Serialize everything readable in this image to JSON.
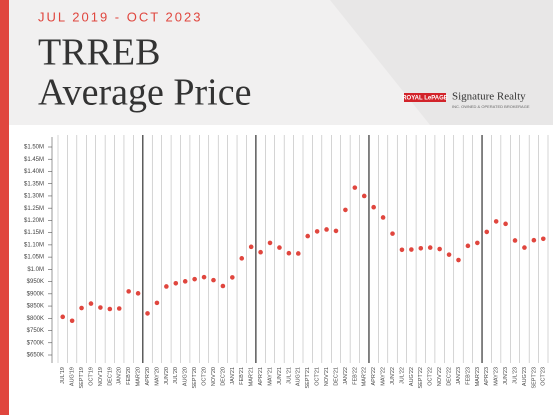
{
  "chart_data": {
    "type": "scatter",
    "subtitle": "JUL 2019 - OCT 2023",
    "title_lines": [
      "TRREB",
      "Average Price"
    ],
    "color": "#e0463e",
    "grid": true,
    "categories": [
      "JUL'19",
      "AUG'19",
      "SEPT'19",
      "OCT'19",
      "NOV'19",
      "DEC'19",
      "JAN'20",
      "FEB'20",
      "MAR'20",
      "APR'20",
      "MAY'20",
      "JUN'20",
      "JUL'20",
      "AUG'20",
      "SEPT'20",
      "OCT'20",
      "NOV'20",
      "DEC'20",
      "JAN'21",
      "FEB'21",
      "MAR'21",
      "APR'21",
      "MAY'21",
      "JUN'21",
      "JUL'21",
      "AUG'21",
      "SEPT'21",
      "OCT'21",
      "NOV'21",
      "DEC'21",
      "JAN'22",
      "FEB'22",
      "MAR'22",
      "APR'22",
      "MAY'22",
      "JUN'22",
      "JUL'22",
      "AUG'22",
      "SEPT'22",
      "OCT'22",
      "NOV'22",
      "DEC'22",
      "JAN'23",
      "FEB'23",
      "MAR'23",
      "APR'23",
      "MAY'23",
      "JUN'23",
      "JUL'23",
      "AUG'23",
      "SEPT'23",
      "OCT'23"
    ],
    "values": [
      806000,
      790000,
      842000,
      860000,
      844000,
      838000,
      840000,
      910000,
      902000,
      820000,
      863000,
      930000,
      943000,
      951000,
      960000,
      968000,
      956000,
      932000,
      967000,
      1045000,
      1092000,
      1070000,
      1108000,
      1089000,
      1066000,
      1065000,
      1136000,
      1155000,
      1163000,
      1157000,
      1243000,
      1334000,
      1300000,
      1254000,
      1212000,
      1146000,
      1080000,
      1081000,
      1086000,
      1089000,
      1083000,
      1060000,
      1038000,
      1096000,
      1108000,
      1153000,
      1196000,
      1186000,
      1118000,
      1089000,
      1119000,
      1125000
    ],
    "ylim": [
      650000,
      1500000
    ],
    "yticks": [
      {
        "value": 650000,
        "label": "$650K"
      },
      {
        "value": 700000,
        "label": "$700K"
      },
      {
        "value": 750000,
        "label": "$750K"
      },
      {
        "value": 800000,
        "label": "$800K"
      },
      {
        "value": 850000,
        "label": "$850K"
      },
      {
        "value": 900000,
        "label": "$900K"
      },
      {
        "value": 950000,
        "label": "$950K"
      },
      {
        "value": 1000000,
        "label": "$1.0M"
      },
      {
        "value": 1050000,
        "label": "$1.05M"
      },
      {
        "value": 1100000,
        "label": "$1.10M"
      },
      {
        "value": 1150000,
        "label": "$1.15M"
      },
      {
        "value": 1200000,
        "label": "$1.20M"
      },
      {
        "value": 1250000,
        "label": "$1.25M"
      },
      {
        "value": 1300000,
        "label": "$1.30M"
      },
      {
        "value": 1350000,
        "label": "$1.35M"
      },
      {
        "value": 1400000,
        "label": "$1.40M"
      },
      {
        "value": 1450000,
        "label": "$1.45M"
      },
      {
        "value": 1500000,
        "label": "$1.50M"
      }
    ]
  },
  "brand": {
    "logo": "ROYAL LePAGE",
    "name": "Signature Realty",
    "tagline": "INC. OWNED & OPERATED BROKERAGE"
  }
}
